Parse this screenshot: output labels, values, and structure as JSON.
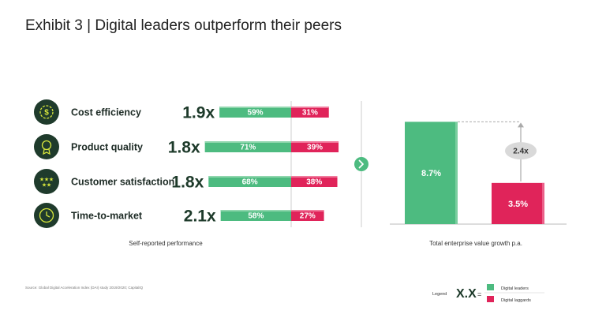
{
  "title": "Exhibit 3 | Digital leaders outperform their peers",
  "colors": {
    "leader": "#4dbb80",
    "laggard": "#e0245a",
    "dark": "#1d3a2a",
    "icon_bg": "#1f3b2c"
  },
  "chart_data": [
    {
      "type": "bar",
      "subtype": "diverging-horizontal",
      "xlabel": "Self-reported performance",
      "categories": [
        "Cost efficiency",
        "Product quality",
        "Customer satisfaction",
        "Time-to-market"
      ],
      "icons": [
        "dollar-gear-icon",
        "award-ribbon-icon",
        "stars-icon",
        "clock-icon"
      ],
      "multipliers": [
        "1.9x",
        "1.8x",
        "1.8x",
        "2.1x"
      ],
      "series": [
        {
          "name": "Digital leaders",
          "values": [
            59,
            71,
            68,
            58
          ],
          "labels": [
            "59%",
            "71%",
            "68%",
            "58%"
          ]
        },
        {
          "name": "Digital laggards",
          "values": [
            31,
            39,
            38,
            27
          ],
          "labels": [
            "31%",
            "39%",
            "38%",
            "27%"
          ]
        }
      ]
    },
    {
      "type": "bar",
      "xlabel": "Total enterprise value growth p.a.",
      "categories": [
        "Digital leaders",
        "Digital laggards"
      ],
      "values": [
        8.7,
        3.5
      ],
      "labels": [
        "8.7%",
        "3.5%"
      ],
      "callout": "2.4x"
    }
  ],
  "legend": {
    "label": "Legend",
    "symbol": "X.X",
    "equals": "=",
    "items": [
      "Digital leaders",
      "Digital laggards"
    ]
  },
  "source": "Source: Global Digital Acceleration Index (DAI) study 2019/2020; CapitalIQ"
}
